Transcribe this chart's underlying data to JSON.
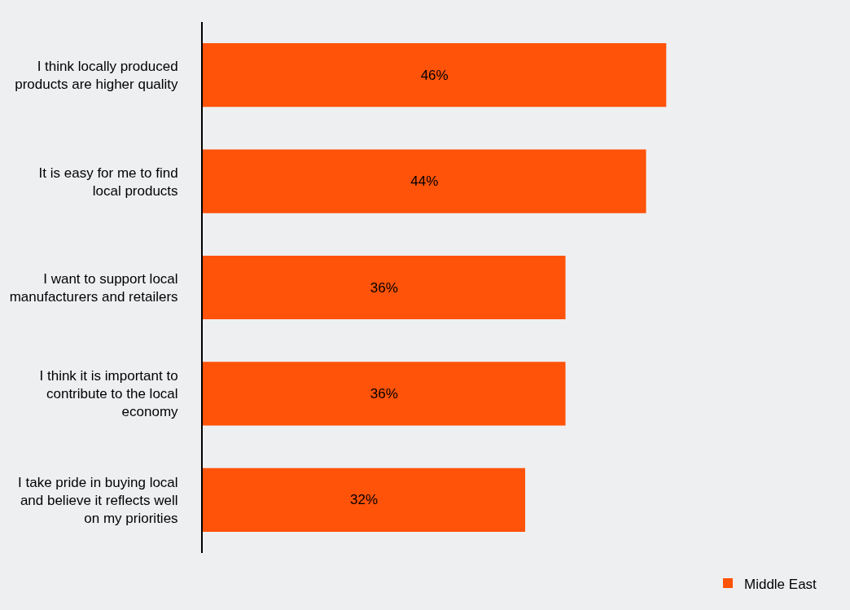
{
  "chart_data": {
    "type": "bar",
    "orientation": "horizontal",
    "categories": [
      "I think locally produced products are higher quality",
      "It is easy for me to find local products",
      "I want to support local manufacturers and retailers",
      "I think it is important to contribute to the local economy",
      "I take pride in buying local and believe it reflects well on my priorities"
    ],
    "series": [
      {
        "name": "Middle East",
        "color": "#ff5309",
        "values": [
          46,
          44,
          36,
          36,
          32
        ],
        "value_labels": [
          "46%",
          "44%",
          "36%",
          "36%",
          "32%"
        ]
      }
    ],
    "legend": "bottom right",
    "grid": false
  }
}
